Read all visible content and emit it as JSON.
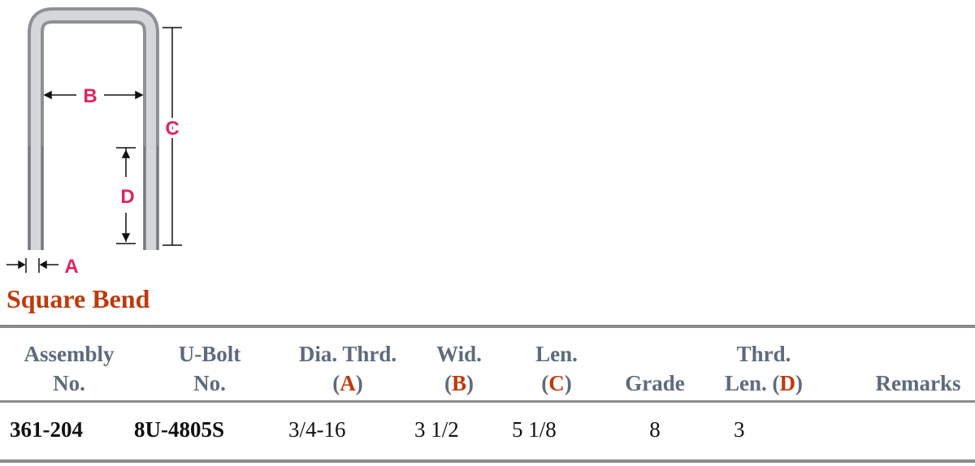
{
  "diagram": {
    "labels": {
      "b": "B",
      "c": "C",
      "d": "D",
      "a": "A"
    }
  },
  "title": "Square Bend",
  "table": {
    "headers": [
      {
        "line1": "Assembly",
        "line2": "No."
      },
      {
        "line1": "U-Bolt",
        "line2": "No."
      },
      {
        "line1": "Dia. Thrd.",
        "line2": "(",
        "letter": "A",
        "close": ")"
      },
      {
        "line1": "Wid.",
        "line2": "(",
        "letter": "B",
        "close": ")"
      },
      {
        "line1": "Len.",
        "line2": "(",
        "letter": "C",
        "close": ")"
      },
      {
        "line2": "Grade"
      },
      {
        "line1": "Thrd.",
        "line2": "Len. (",
        "letter": "D",
        "close": ")"
      },
      {
        "line2": "Remarks"
      }
    ],
    "rows": [
      [
        "361-204",
        "8U-4805S",
        "3/4-16",
        "3 1/2",
        "5 1/8",
        "8",
        "3"
      ]
    ]
  }
}
